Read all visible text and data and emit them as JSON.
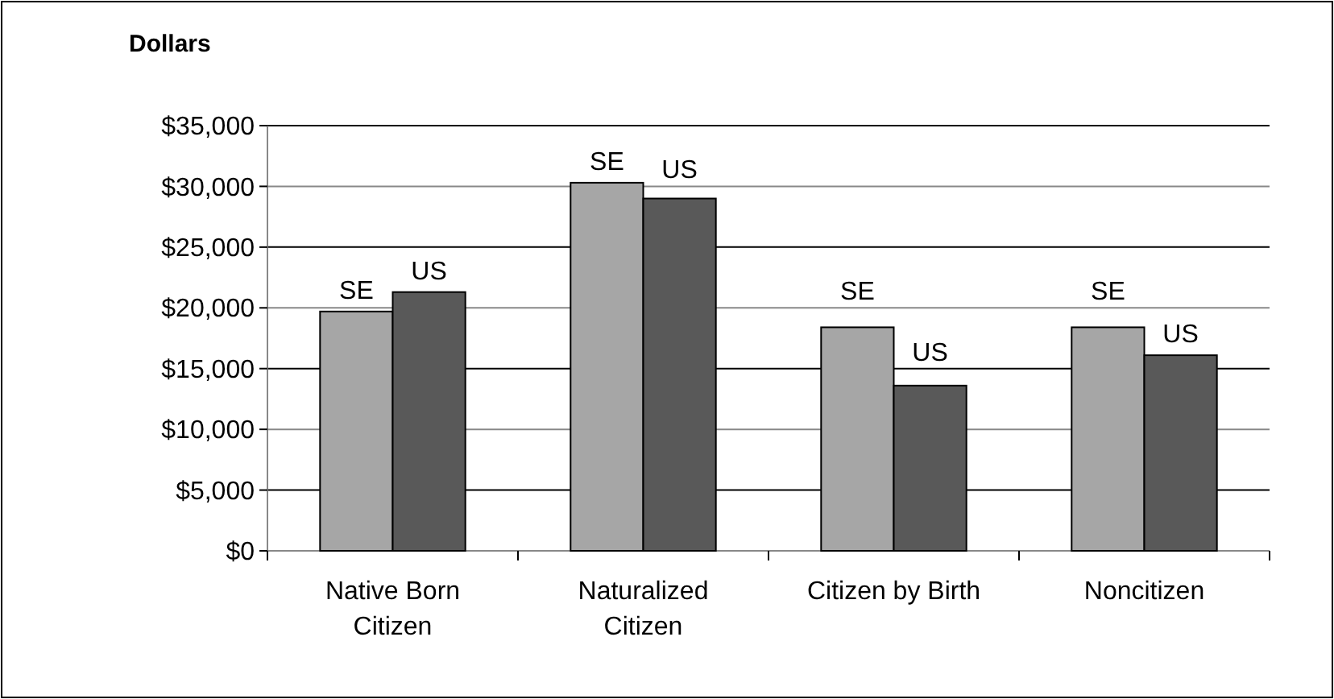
{
  "chart_data": {
    "type": "bar",
    "ylabel": "Dollars",
    "categories": [
      "Native Born Citizen",
      "Naturalized Citizen",
      "Citizen by Birth",
      "Noncitizen"
    ],
    "series": [
      {
        "name": "SE",
        "color": "#a6a6a6",
        "values": [
          19700,
          30300,
          18400,
          18400
        ]
      },
      {
        "name": "US",
        "color": "#595959",
        "values": [
          21300,
          29000,
          13600,
          16100
        ]
      }
    ],
    "ylim": [
      0,
      35000
    ],
    "yticks": [
      {
        "value": 0,
        "label": "$0"
      },
      {
        "value": 5000,
        "label": "$5,000"
      },
      {
        "value": 10000,
        "label": "$10,000"
      },
      {
        "value": 15000,
        "label": "$15,000"
      },
      {
        "value": 20000,
        "label": "$20,000"
      },
      {
        "value": 25000,
        "label": "$25,000"
      },
      {
        "value": 30000,
        "label": "$30,000"
      },
      {
        "value": 35000,
        "label": "$35,000"
      }
    ],
    "grid": "y"
  }
}
